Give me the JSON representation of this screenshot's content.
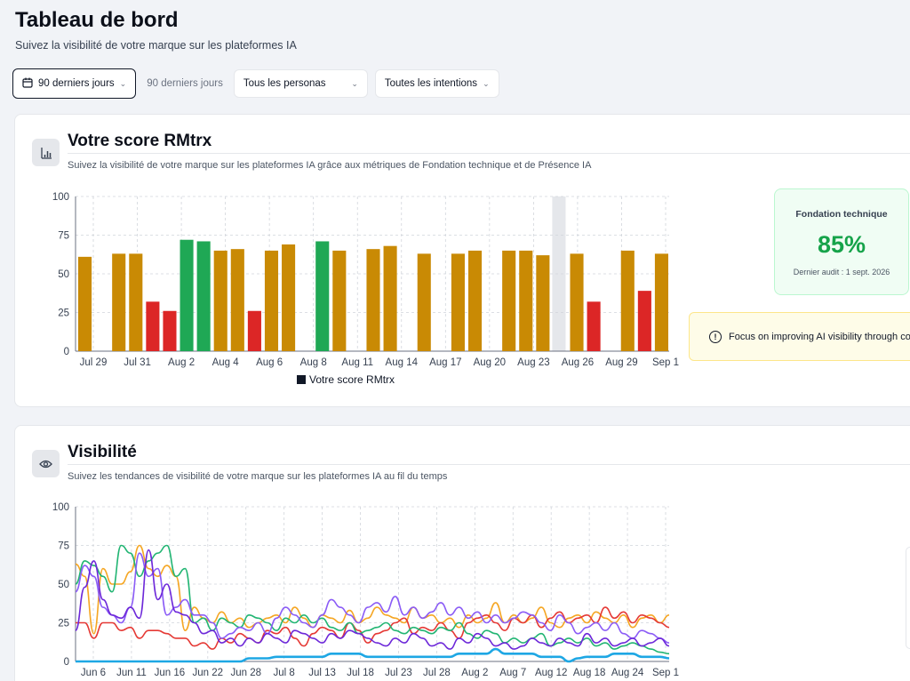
{
  "header": {
    "title": "Tableau de bord",
    "subtitle": "Suivez la visibilité de votre marque sur les plateformes IA"
  },
  "filters": {
    "period_button": "90 derniers jours",
    "period_label": "90 derniers jours",
    "personas": "Tous les personas",
    "intents": "Toutes les intentions"
  },
  "score_card": {
    "title": "Votre score RMtrx",
    "description": "Suivez la visibilité de votre marque sur les plateformes IA grâce aux métriques de Fondation technique et de Présence IA",
    "icon": "bar-chart-icon",
    "metric": {
      "label": "Fondation technique",
      "value": "85%",
      "audit": "Dernier audit : 1 sept. 2026"
    },
    "alert": "Focus on improving AI visibility through co"
  },
  "visibility_card": {
    "title": "Visibilité",
    "description": "Suivez les tendances de visibilité de votre marque sur les plateformes IA au fil du temps",
    "icon": "eye-icon"
  },
  "colors": {
    "gold": "#c98a04",
    "green": "#1fa855",
    "red": "#dc2626",
    "line_orange": "#f5a623",
    "line_red": "#e53935",
    "line_green": "#22b573",
    "line_purple": "#8b5cf6",
    "line_violet": "#6d28d9",
    "line_blue": "#1ea7e4"
  },
  "chart_data": [
    {
      "type": "bar",
      "title": "",
      "legend": [
        "Votre score RMtrx"
      ],
      "legend_position": "bottom",
      "ylim": [
        0,
        100
      ],
      "yticks": [
        0,
        25,
        50,
        75,
        100
      ],
      "xticks": [
        "Jul 29",
        "Jul 31",
        "Aug 2",
        "Aug 4",
        "Aug 6",
        "Aug 8",
        "Aug 11",
        "Aug 14",
        "Aug 17",
        "Aug 20",
        "Aug 23",
        "Aug 26",
        "Aug 29",
        "Sep 1"
      ],
      "grid": true,
      "highlight_slot": 28,
      "slots": 35,
      "bars": [
        {
          "slot": 0,
          "value": 61,
          "color": "gold"
        },
        {
          "slot": 2,
          "value": 63,
          "color": "gold"
        },
        {
          "slot": 3,
          "value": 63,
          "color": "gold"
        },
        {
          "slot": 4,
          "value": 32,
          "color": "red"
        },
        {
          "slot": 5,
          "value": 26,
          "color": "red"
        },
        {
          "slot": 6,
          "value": 72,
          "color": "green"
        },
        {
          "slot": 7,
          "value": 71,
          "color": "green"
        },
        {
          "slot": 8,
          "value": 65,
          "color": "gold"
        },
        {
          "slot": 9,
          "value": 66,
          "color": "gold"
        },
        {
          "slot": 10,
          "value": 26,
          "color": "red"
        },
        {
          "slot": 11,
          "value": 65,
          "color": "gold"
        },
        {
          "slot": 12,
          "value": 69,
          "color": "gold"
        },
        {
          "slot": 14,
          "value": 71,
          "color": "green"
        },
        {
          "slot": 15,
          "value": 65,
          "color": "gold"
        },
        {
          "slot": 17,
          "value": 66,
          "color": "gold"
        },
        {
          "slot": 18,
          "value": 68,
          "color": "gold"
        },
        {
          "slot": 20,
          "value": 63,
          "color": "gold"
        },
        {
          "slot": 22,
          "value": 63,
          "color": "gold"
        },
        {
          "slot": 23,
          "value": 65,
          "color": "gold"
        },
        {
          "slot": 25,
          "value": 65,
          "color": "gold"
        },
        {
          "slot": 26,
          "value": 65,
          "color": "gold"
        },
        {
          "slot": 27,
          "value": 62,
          "color": "gold"
        },
        {
          "slot": 29,
          "value": 63,
          "color": "gold"
        },
        {
          "slot": 30,
          "value": 32,
          "color": "red"
        },
        {
          "slot": 32,
          "value": 65,
          "color": "gold"
        },
        {
          "slot": 33,
          "value": 39,
          "color": "red"
        },
        {
          "slot": 34,
          "value": 63,
          "color": "gold"
        }
      ]
    },
    {
      "type": "line",
      "title": "",
      "ylim": [
        0,
        100
      ],
      "yticks": [
        0,
        25,
        50,
        75,
        100
      ],
      "xticks": [
        "Jun 6",
        "Jun 11",
        "Jun 16",
        "Jun 22",
        "Jun 28",
        "Jul 8",
        "Jul 13",
        "Jul 18",
        "Jul 23",
        "Jul 28",
        "Aug 2",
        "Aug 7",
        "Aug 12",
        "Aug 18",
        "Aug 24",
        "Sep 1"
      ],
      "grid": true,
      "series": [
        {
          "color": "line_orange",
          "values": [
            63,
            55,
            18,
            60,
            50,
            50,
            58,
            75,
            60,
            55,
            62,
            55,
            20,
            35,
            28,
            25,
            32,
            25,
            28,
            22,
            25,
            28,
            30,
            25,
            35,
            28,
            22,
            30,
            28,
            25,
            33,
            25,
            28,
            35,
            30,
            28,
            25,
            35,
            28,
            30,
            25,
            28,
            22,
            30,
            25,
            28,
            38,
            25,
            30,
            25,
            28,
            35,
            25,
            22,
            28,
            30,
            25,
            32,
            28,
            25,
            30,
            22,
            28,
            30,
            25,
            30
          ]
        },
        {
          "color": "line_red",
          "values": [
            25,
            25,
            15,
            25,
            25,
            20,
            22,
            15,
            20,
            20,
            18,
            15,
            15,
            10,
            12,
            8,
            15,
            12,
            18,
            15,
            12,
            20,
            18,
            22,
            15,
            10,
            18,
            22,
            20,
            15,
            25,
            20,
            12,
            18,
            20,
            25,
            28,
            18,
            22,
            20,
            25,
            20,
            15,
            25,
            28,
            30,
            25,
            20,
            28,
            25,
            30,
            22,
            28,
            32,
            25,
            28,
            30,
            25,
            35,
            28,
            32,
            25,
            30,
            28,
            25,
            22
          ]
        },
        {
          "color": "line_green",
          "values": [
            50,
            65,
            62,
            55,
            45,
            75,
            70,
            55,
            65,
            70,
            75,
            55,
            60,
            25,
            28,
            20,
            28,
            25,
            22,
            30,
            28,
            25,
            20,
            28,
            25,
            30,
            25,
            28,
            22,
            20,
            25,
            18,
            20,
            22,
            25,
            20,
            18,
            22,
            20,
            18,
            22,
            20,
            25,
            18,
            15,
            20,
            18,
            12,
            15,
            12,
            15,
            18,
            10,
            12,
            15,
            12,
            15,
            10,
            12,
            8,
            10,
            12,
            10,
            8,
            6,
            5
          ]
        },
        {
          "color": "line_purple",
          "values": [
            45,
            62,
            55,
            35,
            30,
            25,
            35,
            70,
            55,
            60,
            30,
            35,
            40,
            30,
            30,
            25,
            15,
            18,
            22,
            20,
            25,
            18,
            28,
            35,
            30,
            25,
            22,
            30,
            40,
            35,
            30,
            25,
            35,
            38,
            32,
            42,
            30,
            35,
            28,
            32,
            38,
            30,
            35,
            28,
            32,
            25,
            30,
            25,
            28,
            32,
            30,
            25,
            20,
            30,
            25,
            18,
            22,
            25,
            20,
            25,
            18,
            15,
            20,
            18,
            15,
            12
          ]
        },
        {
          "color": "line_violet",
          "values": [
            20,
            48,
            65,
            40,
            30,
            28,
            35,
            28,
            72,
            40,
            50,
            32,
            30,
            25,
            18,
            20,
            12,
            15,
            10,
            15,
            12,
            18,
            15,
            12,
            20,
            18,
            15,
            12,
            18,
            15,
            20,
            18,
            15,
            12,
            10,
            15,
            12,
            18,
            15,
            10,
            12,
            8,
            15,
            12,
            18,
            15,
            10,
            12,
            8,
            10,
            15,
            12,
            10,
            15,
            12,
            10,
            18,
            12,
            15,
            10,
            12,
            15,
            10,
            12,
            15,
            10
          ]
        },
        {
          "color": "line_blue",
          "values": [
            0,
            0,
            0,
            0,
            0,
            0,
            0,
            0,
            0,
            0,
            0,
            0,
            0,
            0,
            0,
            0,
            0,
            0,
            0,
            2,
            2,
            2,
            3,
            3,
            3,
            3,
            3,
            3,
            5,
            5,
            5,
            5,
            3,
            3,
            3,
            3,
            3,
            3,
            3,
            3,
            3,
            3,
            5,
            5,
            5,
            5,
            8,
            5,
            5,
            5,
            5,
            3,
            3,
            3,
            0,
            2,
            3,
            3,
            3,
            5,
            5,
            5,
            3,
            3,
            3,
            2
          ]
        }
      ]
    }
  ]
}
